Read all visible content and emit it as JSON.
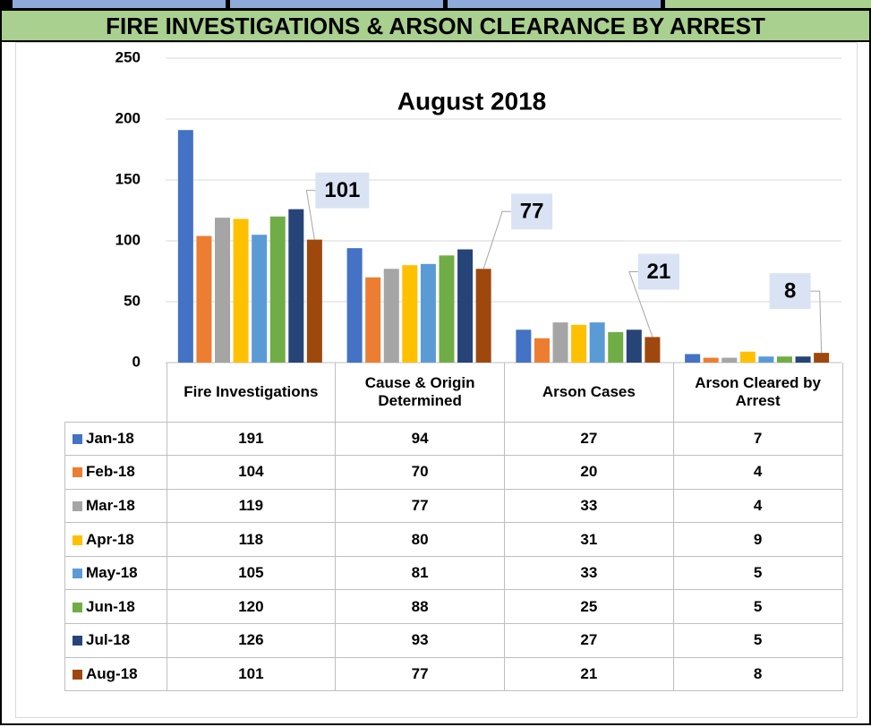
{
  "chart_data": {
    "type": "bar",
    "header": "FIRE INVESTIGATIONS & ARSON CLEARANCE BY ARREST",
    "title": "August 2018",
    "categories": [
      "Fire Investigations",
      "Cause & Origin Determined",
      "Arson Cases",
      "Arson Cleared by Arrest"
    ],
    "series": [
      {
        "name": "Jan-18",
        "color": "#4472c4",
        "values": [
          191,
          94,
          27,
          7
        ]
      },
      {
        "name": "Feb-18",
        "color": "#ed7d31",
        "values": [
          104,
          70,
          20,
          4
        ]
      },
      {
        "name": "Mar-18",
        "color": "#a5a5a5",
        "values": [
          119,
          77,
          33,
          4
        ]
      },
      {
        "name": "Apr-18",
        "color": "#ffc000",
        "values": [
          118,
          80,
          31,
          9
        ]
      },
      {
        "name": "May-18",
        "color": "#5b9bd5",
        "values": [
          105,
          81,
          33,
          5
        ]
      },
      {
        "name": "Jun-18",
        "color": "#70ad47",
        "values": [
          120,
          88,
          25,
          5
        ]
      },
      {
        "name": "Jul-18",
        "color": "#264478",
        "values": [
          126,
          93,
          27,
          5
        ]
      },
      {
        "name": "Aug-18",
        "color": "#9e480e",
        "values": [
          101,
          77,
          21,
          8
        ]
      }
    ],
    "labeled_series": 7,
    "ylim": [
      0,
      250
    ],
    "yticks": [
      0,
      50,
      100,
      150,
      200,
      250
    ],
    "grid": true
  }
}
